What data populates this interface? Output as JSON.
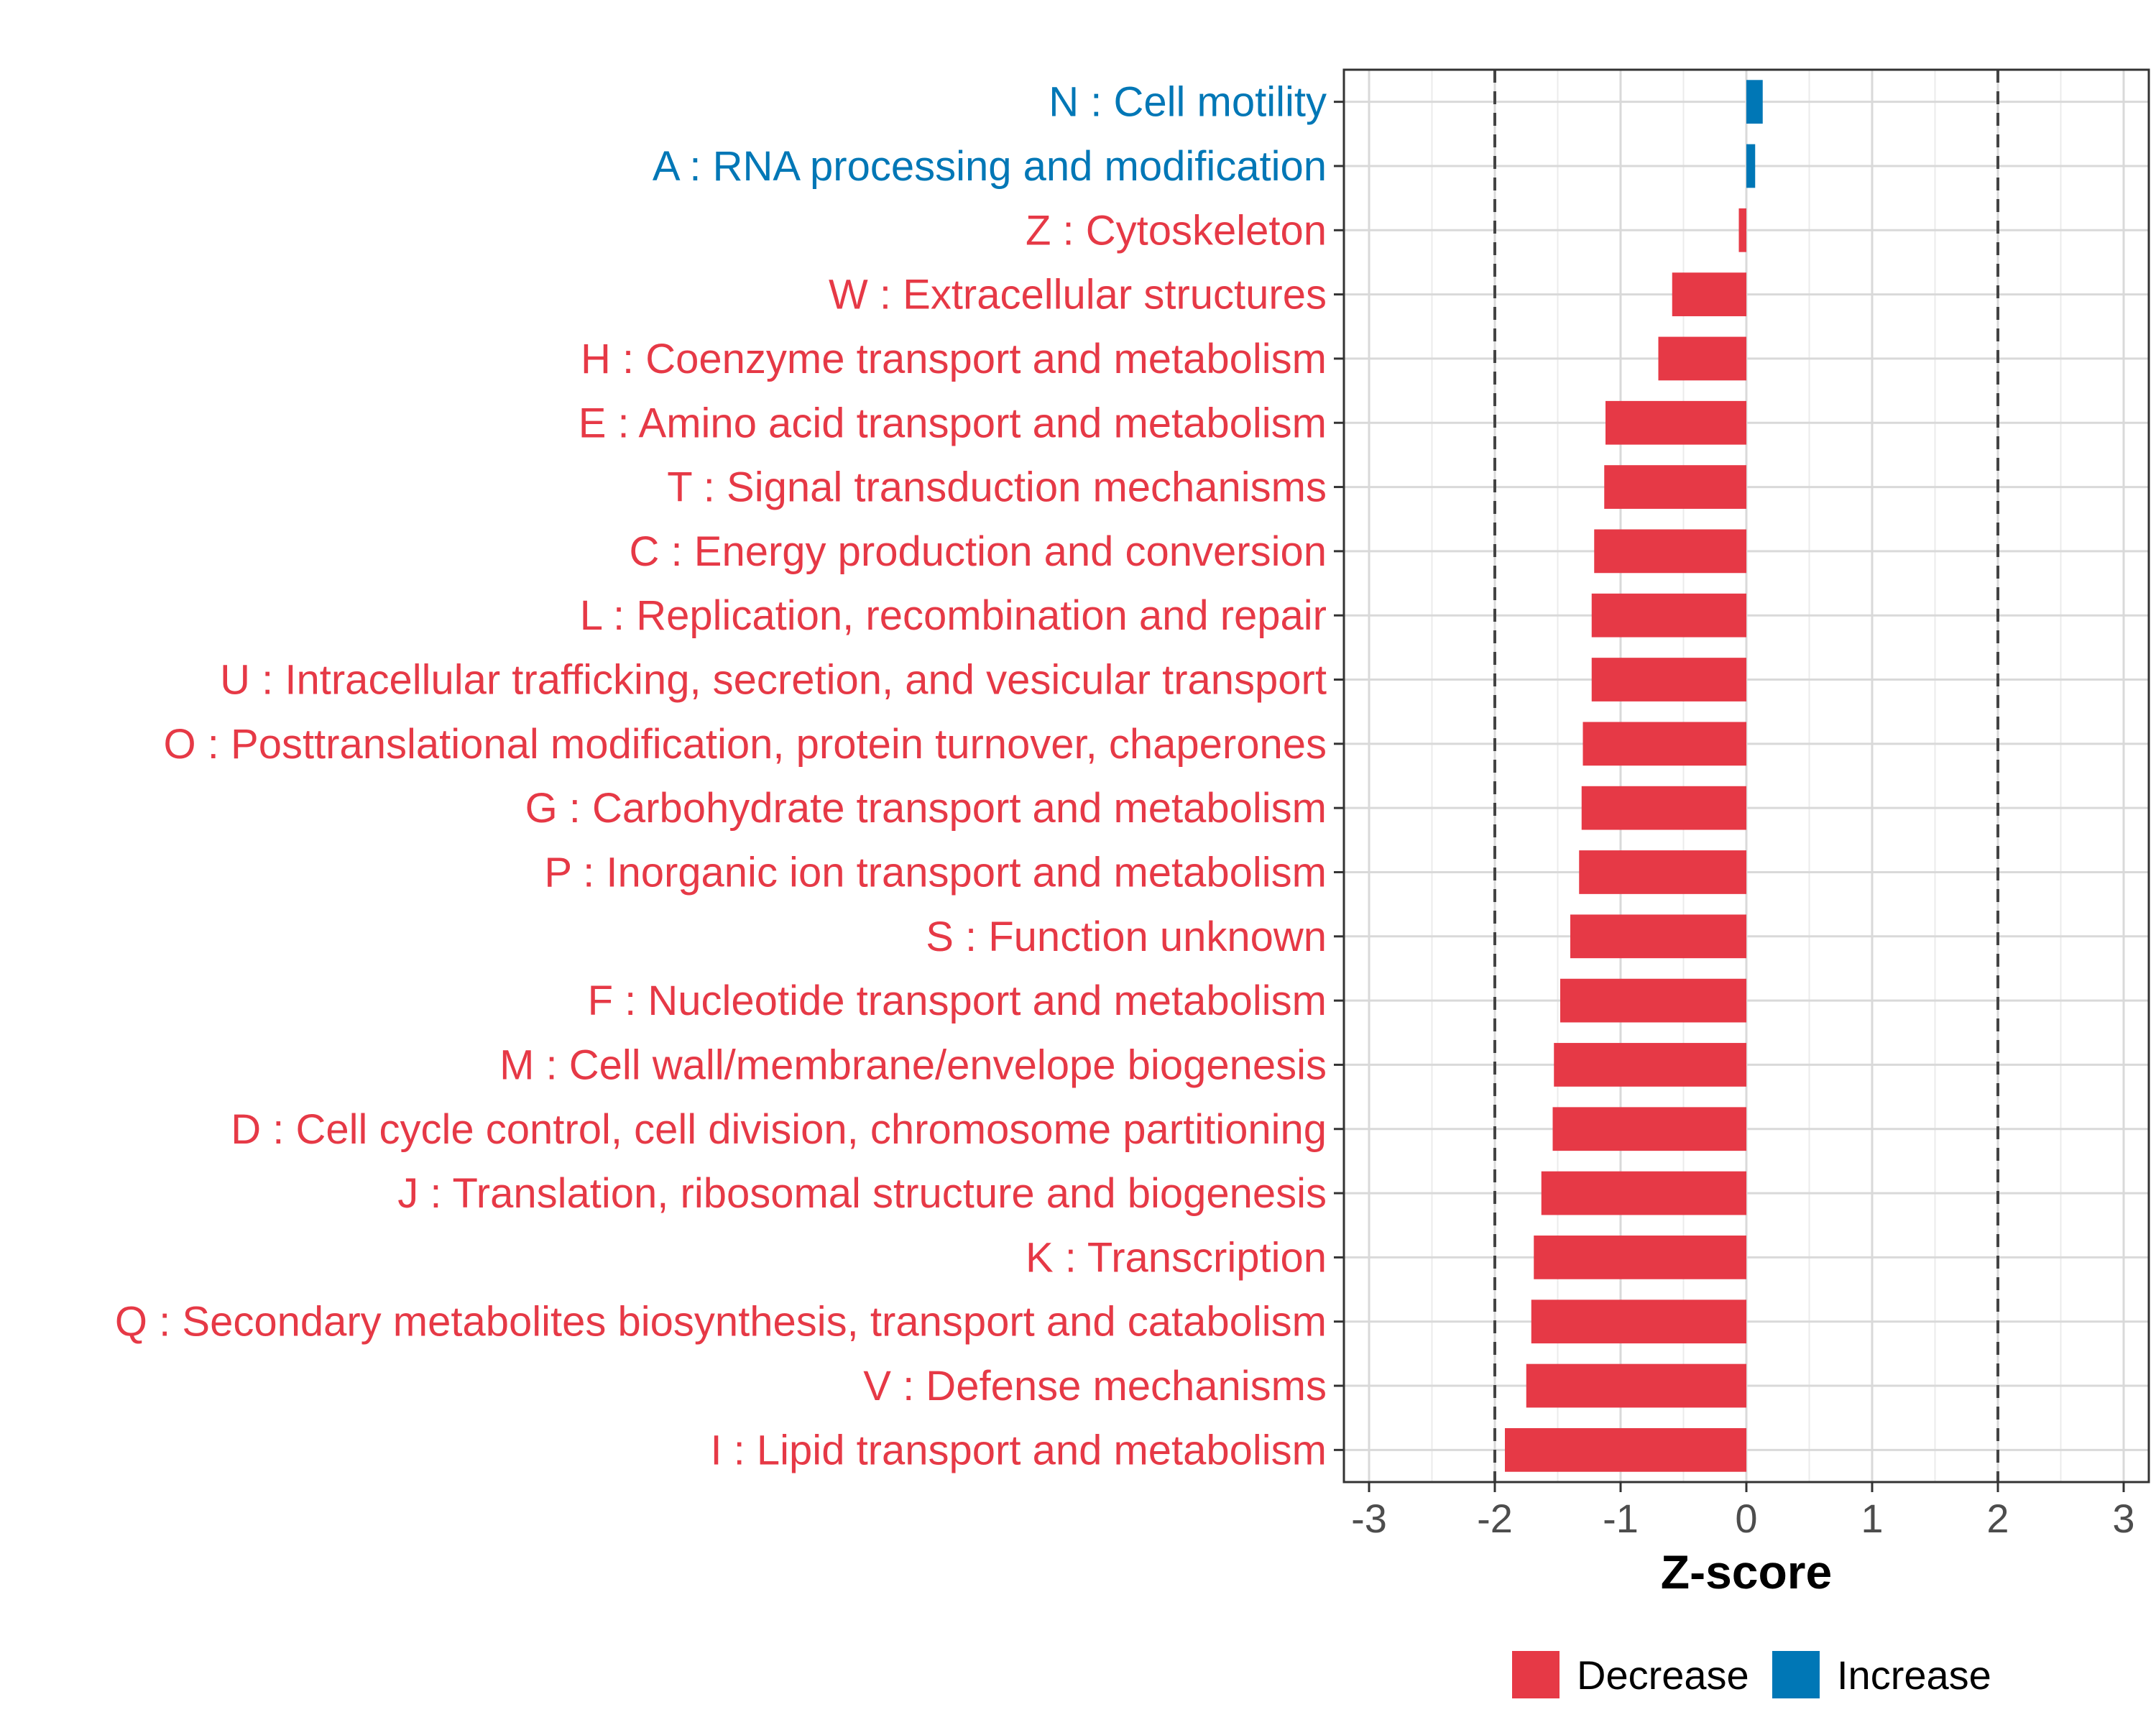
{
  "chart_data": {
    "type": "bar",
    "orientation": "horizontal",
    "xlabel": "Z-score",
    "ylabel": "",
    "xlim": [
      -3.2,
      3.2
    ],
    "xticks": [
      -3,
      -2,
      -1,
      0,
      1,
      2,
      3
    ],
    "xtick_labels": [
      "-3",
      "-2",
      "-1",
      "0",
      "1",
      "2",
      "3"
    ],
    "reference_lines": [
      -2,
      2
    ],
    "grid": true,
    "legend": {
      "position": "bottom",
      "items": [
        {
          "label": "Decrease",
          "color": "#E63946"
        },
        {
          "label": "Increase",
          "color": "#0077B6"
        }
      ]
    },
    "categories": [
      "N : Cell motility",
      "A : RNA processing and modification",
      "Z : Cytoskeleton",
      "W : Extracellular structures",
      "H : Coenzyme transport and metabolism",
      "E : Amino acid transport and metabolism",
      "T : Signal transduction mechanisms",
      "C : Energy production and conversion",
      "L : Replication, recombination and repair",
      "U : Intracellular trafficking, secretion, and vesicular transport",
      "O : Posttranslational modification, protein turnover, chaperones",
      "G : Carbohydrate transport and metabolism",
      "P : Inorganic ion transport and metabolism",
      "S : Function unknown",
      "F : Nucleotide transport and metabolism",
      "M : Cell wall/membrane/envelope biogenesis",
      "D : Cell cycle control, cell division, chromosome partitioning",
      "J : Translation, ribosomal structure and biogenesis",
      "K : Transcription",
      "Q : Secondary metabolites biosynthesis, transport and catabolism",
      "V : Defense mechanisms",
      "I : Lipid transport and metabolism"
    ],
    "values": [
      0.13,
      0.07,
      -0.06,
      -0.59,
      -0.7,
      -1.12,
      -1.13,
      -1.21,
      -1.23,
      -1.23,
      -1.3,
      -1.31,
      -1.33,
      -1.4,
      -1.48,
      -1.53,
      -1.54,
      -1.63,
      -1.69,
      -1.71,
      -1.75,
      -1.92
    ],
    "groups": [
      "Increase",
      "Increase",
      "Decrease",
      "Decrease",
      "Decrease",
      "Decrease",
      "Decrease",
      "Decrease",
      "Decrease",
      "Decrease",
      "Decrease",
      "Decrease",
      "Decrease",
      "Decrease",
      "Decrease",
      "Decrease",
      "Decrease",
      "Decrease",
      "Decrease",
      "Decrease",
      "Decrease",
      "Decrease"
    ]
  }
}
